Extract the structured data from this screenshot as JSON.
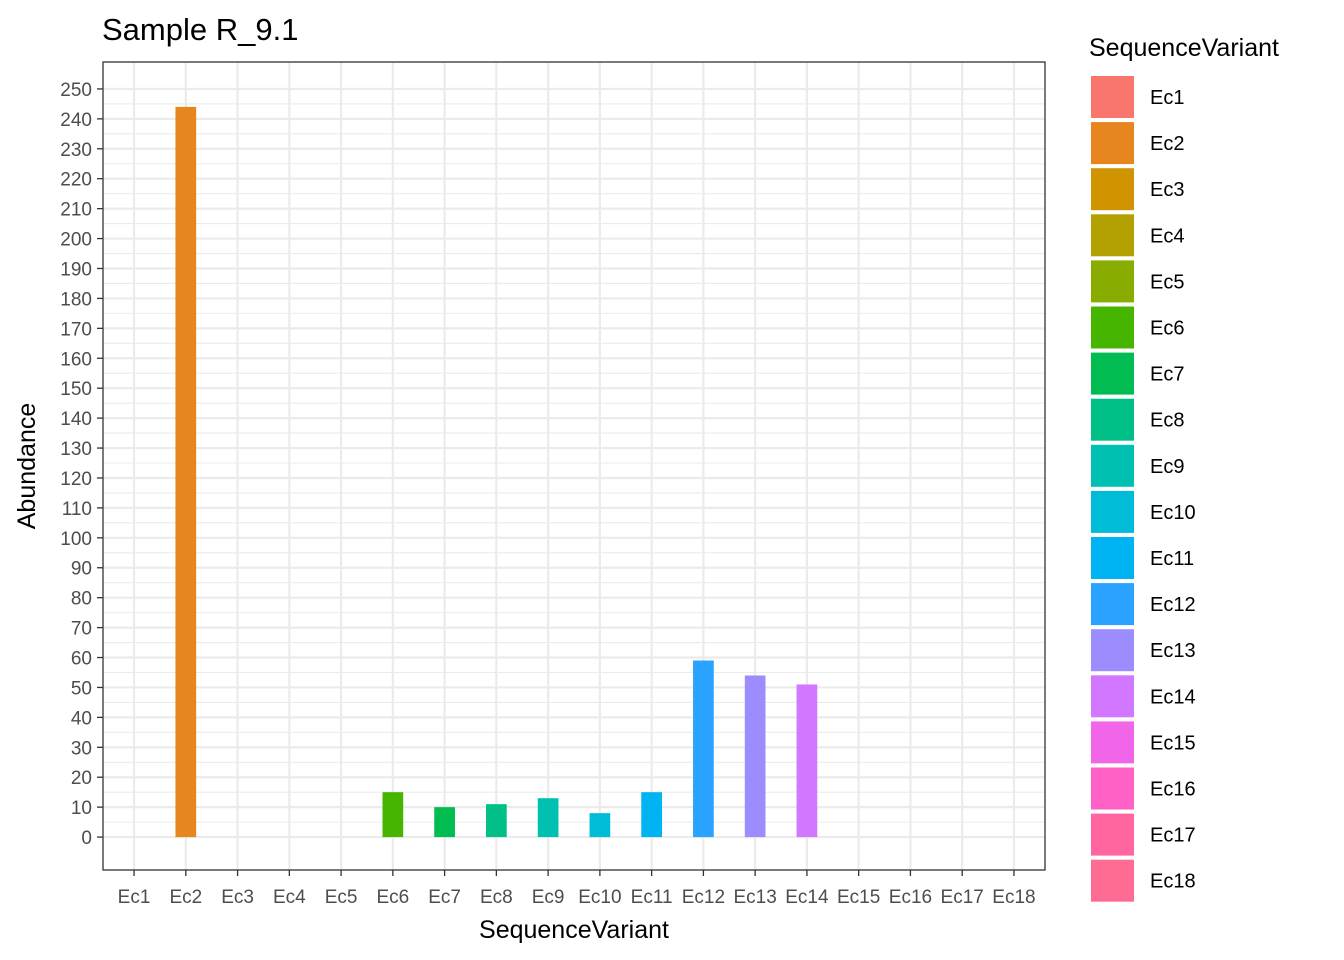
{
  "chart_data": {
    "type": "bar",
    "title": "Sample R_9.1",
    "xlabel": "SequenceVariant",
    "ylabel": "Abundance",
    "ylim": [
      -11,
      259
    ],
    "yticks": [
      0,
      10,
      20,
      30,
      40,
      50,
      60,
      70,
      80,
      90,
      100,
      110,
      120,
      130,
      140,
      150,
      160,
      170,
      180,
      190,
      200,
      210,
      220,
      230,
      240,
      250
    ],
    "categories": [
      "Ec1",
      "Ec2",
      "Ec3",
      "Ec4",
      "Ec5",
      "Ec6",
      "Ec7",
      "Ec8",
      "Ec9",
      "Ec10",
      "Ec11",
      "Ec12",
      "Ec13",
      "Ec14",
      "Ec15",
      "Ec16",
      "Ec17",
      "Ec18"
    ],
    "values": [
      0,
      244,
      0,
      0,
      0,
      15,
      10,
      11,
      13,
      8,
      15,
      59,
      54,
      51,
      0,
      0,
      0,
      0
    ],
    "colors": [
      "#F8766D",
      "#E7851E",
      "#D09400",
      "#B2A100",
      "#89AC00",
      "#45B500",
      "#00BC51",
      "#00C087",
      "#00C0B2",
      "#00BCD6",
      "#00B3F2",
      "#29A3FF",
      "#9C8DFF",
      "#D277FF",
      "#F166E8",
      "#FF61C7",
      "#FF659F",
      "#FF6C93"
    ],
    "grid": true,
    "legend": {
      "title": "SequenceVariant",
      "placement": "right",
      "entries": [
        "Ec1",
        "Ec2",
        "Ec3",
        "Ec4",
        "Ec5",
        "Ec6",
        "Ec7",
        "Ec8",
        "Ec9",
        "Ec10",
        "Ec11",
        "Ec12",
        "Ec13",
        "Ec14",
        "Ec15",
        "Ec16",
        "Ec17",
        "Ec18"
      ]
    }
  }
}
